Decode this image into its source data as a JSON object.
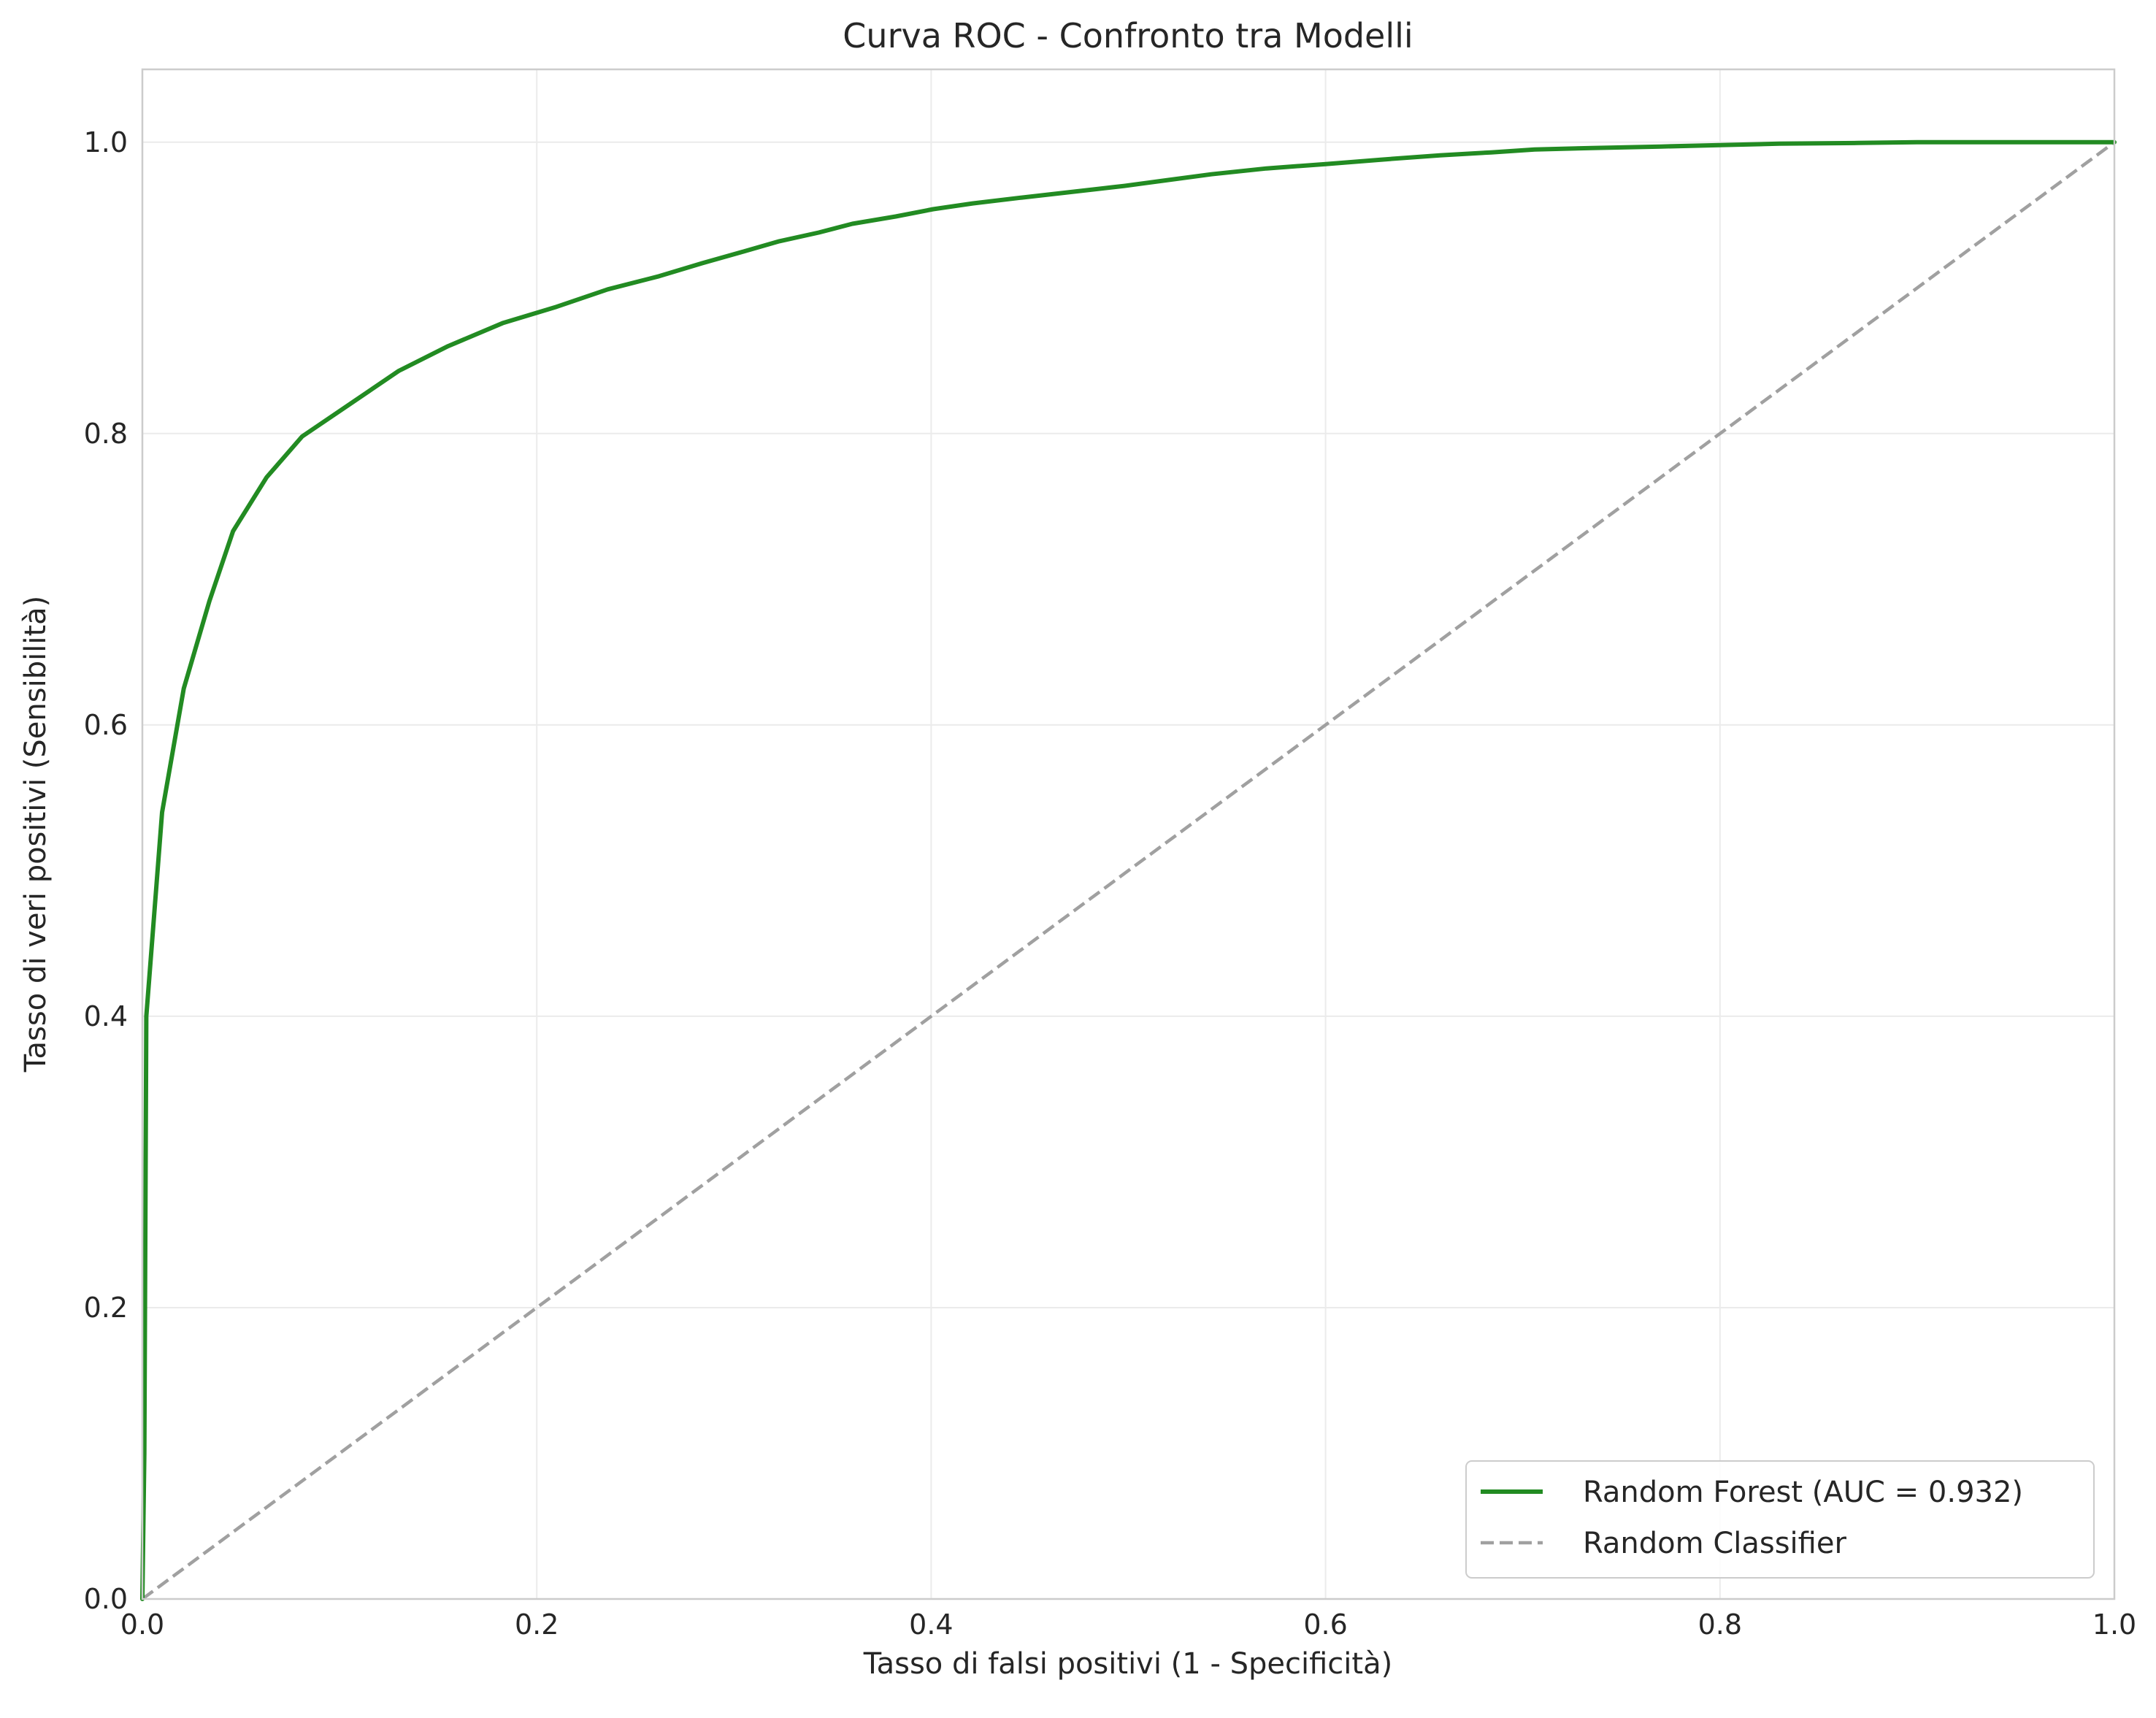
{
  "chart_data": {
    "type": "line",
    "title": "Curva ROC - Confronto tra Modelli",
    "xlabel": "Tasso di falsi positivi (1 - Specificità)",
    "ylabel": "Tasso di veri positivi (Sensibilità)",
    "xlim": [
      0.0,
      1.0
    ],
    "ylim": [
      0.0,
      1.05
    ],
    "xticks": [
      "0.0",
      "0.2",
      "0.4",
      "0.6",
      "0.8",
      "1.0"
    ],
    "yticks": [
      "0.0",
      "0.2",
      "0.4",
      "0.6",
      "0.8",
      "1.0"
    ],
    "grid": true,
    "legend_position": "lower-right",
    "series": [
      {
        "name": "Random Forest (AUC = 0.932)",
        "color": "#228B22",
        "style": "solid",
        "x": [
          0.0,
          0.001,
          0.002,
          0.01,
          0.021,
          0.034,
          0.046,
          0.063,
          0.081,
          0.105,
          0.13,
          0.155,
          0.183,
          0.21,
          0.236,
          0.262,
          0.284,
          0.305,
          0.323,
          0.343,
          0.36,
          0.382,
          0.401,
          0.421,
          0.446,
          0.472,
          0.498,
          0.52,
          0.542,
          0.57,
          0.6,
          0.628,
          0.658,
          0.684,
          0.706,
          0.735,
          0.77,
          0.8,
          0.83,
          0.87,
          0.9,
          0.95,
          1.0
        ],
        "y": [
          0.0,
          0.1,
          0.4,
          0.54,
          0.625,
          0.685,
          0.733,
          0.77,
          0.798,
          0.82,
          0.843,
          0.86,
          0.876,
          0.887,
          0.899,
          0.908,
          0.917,
          0.925,
          0.932,
          0.938,
          0.944,
          0.949,
          0.954,
          0.958,
          0.962,
          0.966,
          0.97,
          0.974,
          0.978,
          0.982,
          0.985,
          0.988,
          0.991,
          0.993,
          0.995,
          0.996,
          0.997,
          0.998,
          0.999,
          0.9995,
          1.0,
          1.0,
          1.0
        ]
      },
      {
        "name": "Random Classifier",
        "color": "#a0a0a0",
        "style": "dashed",
        "x": [
          0.0,
          1.0
        ],
        "y": [
          0.0,
          1.0
        ]
      }
    ]
  }
}
